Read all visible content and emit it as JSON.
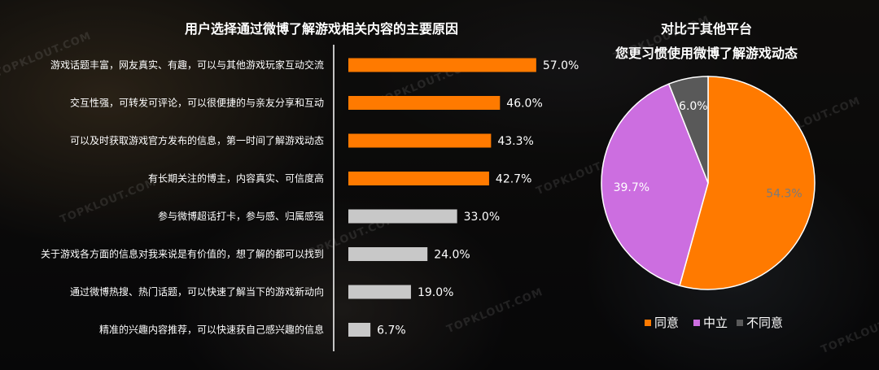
{
  "watermark": "TOPKLOUT.COM",
  "left_title": "用户选择通过微博了解游戏相关内容的主要原因",
  "right_title_line1": "对比于其他平台",
  "right_title_line2": "您更习惯使用微博了解游戏动态",
  "colors": {
    "highlight_bar": "#ff7a00",
    "normal_bar": "#c8c8c8",
    "agree": "#ff7a00",
    "neutral": "#cc6ee0",
    "disagree": "#595959"
  },
  "chart_data": [
    {
      "type": "bar",
      "orientation": "horizontal",
      "title": "用户选择通过微博了解游戏相关内容的主要原因",
      "categories": [
        "游戏话题丰富，网友真实、有趣，可以与其他游戏玩家互动交流",
        "交互性强，可转发可评论，可以很便捷的与亲友分享和互动",
        "可以及时获取游戏官方发布的信息，第一时间了解游戏动态",
        "有长期关注的博主，内容真实、可信度高",
        "参与微博超话打卡，参与感、归属感强",
        "关于游戏各方面的信息对我来说是有价值的，想了解的都可以找到",
        "通过微博热搜、热门话题，可以快速了解当下的游戏新动向",
        "精准的兴趣内容推荐，可以快速获自己感兴趣的信息"
      ],
      "values": [
        57.0,
        46.0,
        43.3,
        42.7,
        33.0,
        24.0,
        19.0,
        6.7
      ],
      "labels": [
        "57.0%",
        "46.0%",
        "43.3%",
        "42.7%",
        "33.0%",
        "24.0%",
        "19.0%",
        "6.7%"
      ],
      "highlighted": [
        true,
        true,
        true,
        true,
        false,
        false,
        false,
        false
      ],
      "xlim": [
        0,
        100
      ]
    },
    {
      "type": "pie",
      "title": "对比于其他平台 您更习惯使用微博了解游戏动态",
      "categories": [
        "同意",
        "中立",
        "不同意"
      ],
      "values": [
        54.3,
        39.7,
        6.0
      ],
      "labels": [
        "54.3%",
        "39.7%",
        "6.0%"
      ],
      "legend_position": "bottom"
    }
  ]
}
